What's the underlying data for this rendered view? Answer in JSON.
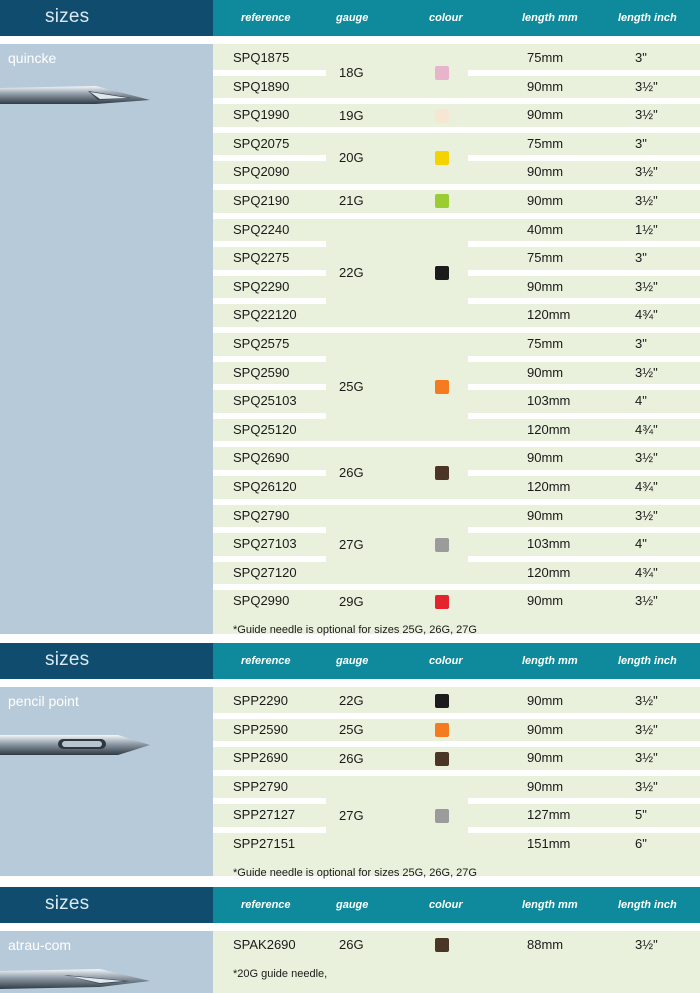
{
  "columns": {
    "reference": "reference",
    "gauge": "gauge",
    "colour": "colour",
    "length_mm": "length mm",
    "length_inch": "length inch"
  },
  "sections": [
    {
      "title": "sizes",
      "product": "quincke",
      "needle_icon": "quincke-needle-icon",
      "rows": [
        {
          "ref": "SPQ1875",
          "mm": "75mm",
          "inch": "3\""
        },
        {
          "ref": "SPQ1890",
          "mm": "90mm",
          "inch": "3½\""
        },
        {
          "ref": "SPQ1990",
          "mm": "90mm",
          "inch": "3½\""
        },
        {
          "ref": "SPQ2075",
          "mm": "75mm",
          "inch": "3\""
        },
        {
          "ref": "SPQ2090",
          "mm": "90mm",
          "inch": "3½\""
        },
        {
          "ref": "SPQ2190",
          "mm": "90mm",
          "inch": "3½\""
        },
        {
          "ref": "SPQ2240",
          "mm": "40mm",
          "inch": "1½\""
        },
        {
          "ref": "SPQ2275",
          "mm": "75mm",
          "inch": "3\""
        },
        {
          "ref": "SPQ2290",
          "mm": "90mm",
          "inch": "3½\""
        },
        {
          "ref": "SPQ22120",
          "mm": "120mm",
          "inch": "4¾\""
        },
        {
          "ref": "SPQ2575",
          "mm": "75mm",
          "inch": "3\""
        },
        {
          "ref": "SPQ2590",
          "mm": "90mm",
          "inch": "3½\""
        },
        {
          "ref": "SPQ25103",
          "mm": "103mm",
          "inch": "4\""
        },
        {
          "ref": "SPQ25120",
          "mm": "120mm",
          "inch": "4¾\""
        },
        {
          "ref": "SPQ2690",
          "mm": "90mm",
          "inch": "3½\""
        },
        {
          "ref": "SPQ26120",
          "mm": "120mm",
          "inch": "4¾\""
        },
        {
          "ref": "SPQ2790",
          "mm": "90mm",
          "inch": "3½\""
        },
        {
          "ref": "SPQ27103",
          "mm": "103mm",
          "inch": "4\""
        },
        {
          "ref": "SPQ27120",
          "mm": "120mm",
          "inch": "4¾\""
        },
        {
          "ref": "SPQ2990",
          "mm": "90mm",
          "inch": "3½\""
        }
      ],
      "groups": [
        {
          "gauge": "18G",
          "color": "#e8b4cc",
          "from": 0,
          "to": 1
        },
        {
          "gauge": "19G",
          "color": "#f7e6d1",
          "from": 2,
          "to": 2
        },
        {
          "gauge": "20G",
          "color": "#f5d300",
          "from": 3,
          "to": 4
        },
        {
          "gauge": "21G",
          "color": "#9acd32",
          "from": 5,
          "to": 5
        },
        {
          "gauge": "22G",
          "color": "#1c1c1c",
          "from": 6,
          "to": 9
        },
        {
          "gauge": "25G",
          "color": "#f47b20",
          "from": 10,
          "to": 13
        },
        {
          "gauge": "26G",
          "color": "#4a3526",
          "from": 14,
          "to": 15
        },
        {
          "gauge": "27G",
          "color": "#9b9b9b",
          "from": 16,
          "to": 18
        },
        {
          "gauge": "29G",
          "color": "#e4242b",
          "from": 19,
          "to": 19
        }
      ],
      "note": "*Guide needle is optional for sizes 25G, 26G, 27G"
    },
    {
      "title": "sizes",
      "product": "pencil point",
      "needle_icon": "pencil-point-needle-icon",
      "rows": [
        {
          "ref": "SPP2290",
          "mm": "90mm",
          "inch": "3½\""
        },
        {
          "ref": "SPP2590",
          "mm": "90mm",
          "inch": "3½\""
        },
        {
          "ref": "SPP2690",
          "mm": "90mm",
          "inch": "3½\""
        },
        {
          "ref": "SPP2790",
          "mm": "90mm",
          "inch": "3½\""
        },
        {
          "ref": "SPP27127",
          "mm": "127mm",
          "inch": "5\""
        },
        {
          "ref": "SPP27151",
          "mm": "151mm",
          "inch": "6\""
        }
      ],
      "groups": [
        {
          "gauge": "22G",
          "color": "#1c1c1c",
          "from": 0,
          "to": 0
        },
        {
          "gauge": "25G",
          "color": "#f47b20",
          "from": 1,
          "to": 1
        },
        {
          "gauge": "26G",
          "color": "#4a3526",
          "from": 2,
          "to": 2
        },
        {
          "gauge": "27G",
          "color": "#9b9b9b",
          "from": 3,
          "to": 5
        }
      ],
      "note": "*Guide needle is optional for sizes 25G, 26G, 27G"
    },
    {
      "title": "sizes",
      "product": "atrau-com",
      "needle_icon": "atrau-com-needle-icon",
      "rows": [
        {
          "ref": "SPAK2690",
          "mm": "88mm",
          "inch": "3½\""
        }
      ],
      "groups": [
        {
          "gauge": "26G",
          "color": "#4a3526",
          "from": 0,
          "to": 0
        }
      ],
      "note": "*20G guide needle,"
    }
  ]
}
